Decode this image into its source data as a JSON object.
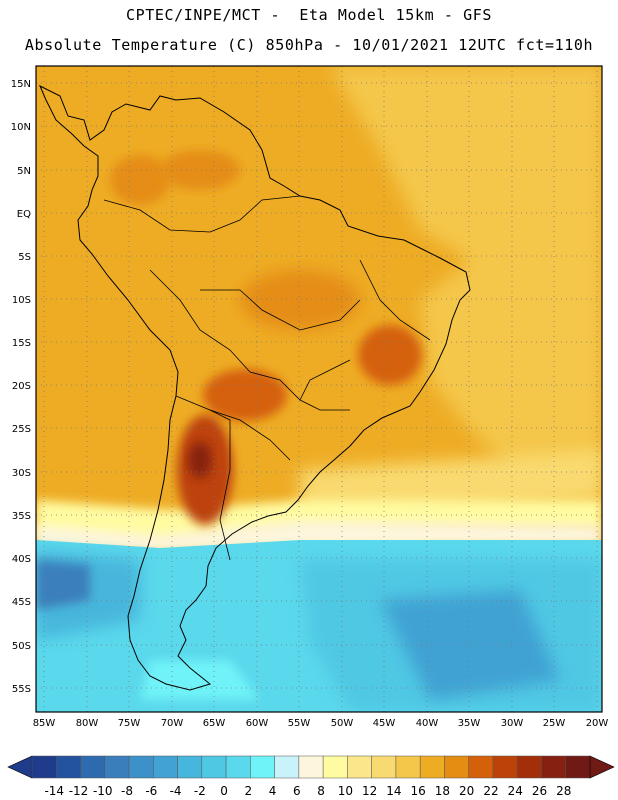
{
  "header": {
    "line1": "CPTEC/INPE/MCT -  Eta Model 15km - GFS",
    "line2": "Absolute Temperature (C) 850hPa - 10/01/2021 12UTC fct=110h"
  },
  "axes": {
    "lat_labels": [
      "15N",
      "10N",
      "5N",
      "EQ",
      "5S",
      "10S",
      "15S",
      "20S",
      "25S",
      "30S",
      "35S",
      "40S",
      "45S",
      "50S",
      "55S"
    ],
    "lon_labels": [
      "85W",
      "80W",
      "75W",
      "70W",
      "65W",
      "60W",
      "55W",
      "50W",
      "45W",
      "40W",
      "35W",
      "30W",
      "25W",
      "20W"
    ]
  },
  "colorbar": {
    "labels": [
      "-14",
      "-12",
      "-10",
      "-8",
      "-6",
      "-4",
      "-2",
      "0",
      "2",
      "4",
      "6",
      "8",
      "10",
      "12",
      "14",
      "16",
      "18",
      "20",
      "22",
      "24",
      "26",
      "28"
    ],
    "colors": [
      "#1f3c8c",
      "#23529f",
      "#2e6aae",
      "#3a7fbc",
      "#3d91c9",
      "#41a2d3",
      "#47b6dc",
      "#4fc8e4",
      "#5ad8ec",
      "#6ff3f8",
      "#c9f3fb",
      "#fdf6dc",
      "#fffba0",
      "#fbe78a",
      "#f9da70",
      "#f4c64a",
      "#eeac25",
      "#e58d12",
      "#d5600a",
      "#bd4208",
      "#a22e0a",
      "#862010",
      "#6f1a14"
    ]
  },
  "map": {
    "region": "South America",
    "variable": "Absolute Temperature (C) 850hPa"
  }
}
